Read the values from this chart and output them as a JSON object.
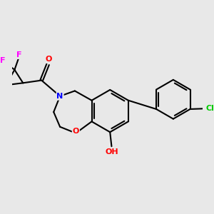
{
  "background_color": "#e8e8e8",
  "atom_colors": {
    "O": "#ff0000",
    "N": "#0000ff",
    "F": "#ff00ff",
    "Cl": "#00cc00",
    "C": "#000000"
  },
  "figsize": [
    3.0,
    3.0
  ],
  "dpi": 100
}
